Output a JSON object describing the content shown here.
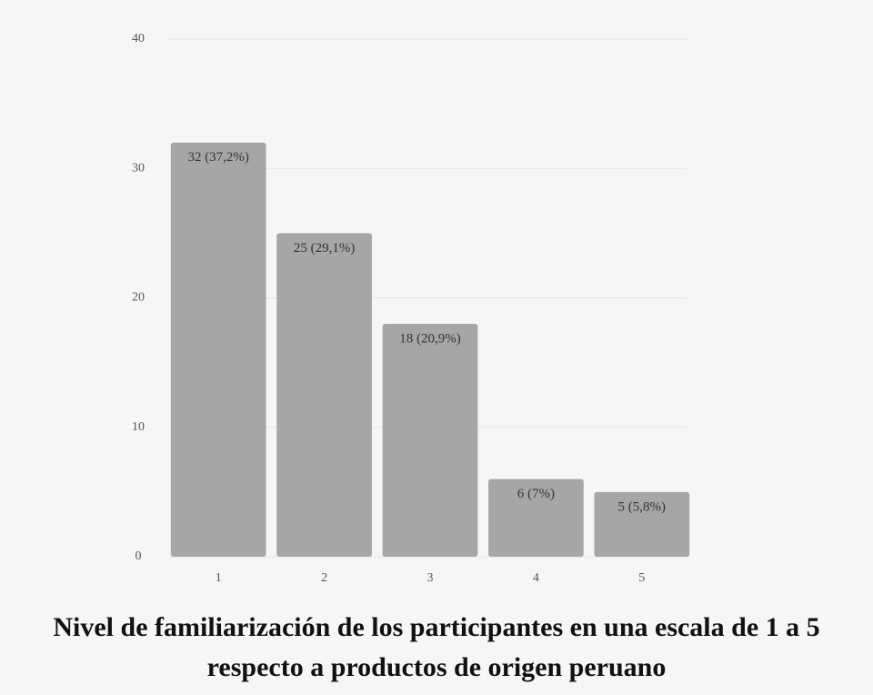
{
  "chart_data": {
    "type": "bar",
    "title": "Nivel de familiarización de los participantes en una escala de 1 a 5 respecto a productos de origen peruano",
    "categories": [
      "1",
      "2",
      "3",
      "4",
      "5"
    ],
    "values": [
      32,
      25,
      18,
      6,
      5
    ],
    "value_labels": [
      "32 (37,2%)",
      "25 (29,1%)",
      "18 (20,9%)",
      "6 (7%)",
      "5 (5,8%)"
    ],
    "color": "#a6a6a6",
    "ylim": [
      0,
      40
    ],
    "yticks": [
      0,
      10,
      20,
      30,
      40
    ],
    "grid": true
  }
}
